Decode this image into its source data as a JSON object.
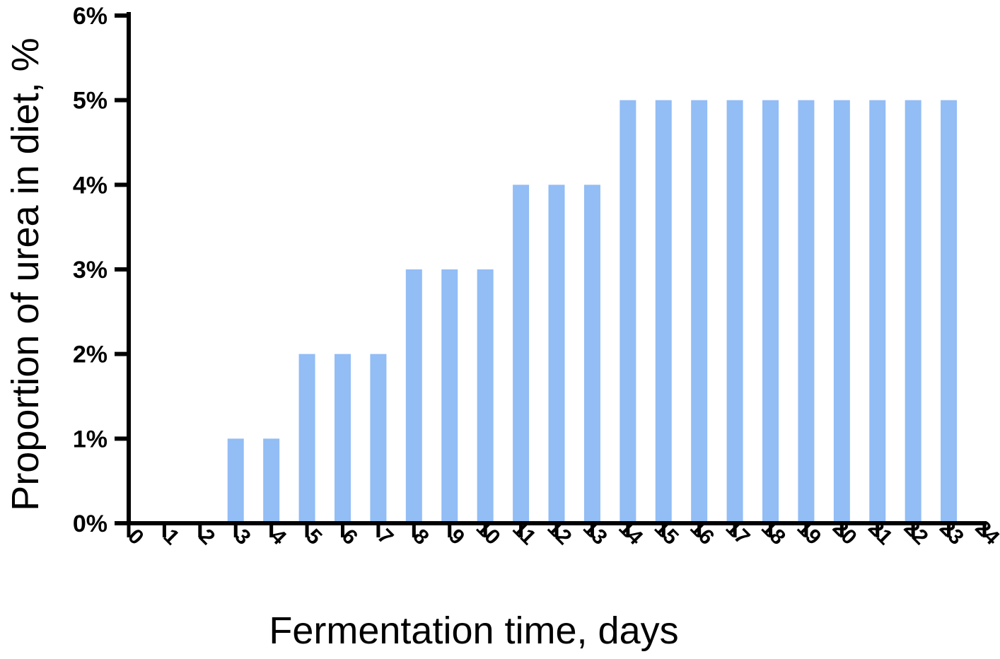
{
  "chart_data": {
    "type": "bar",
    "title": "",
    "xlabel": "Fermentation time, days",
    "ylabel": "Proportion of urea in diet, %",
    "x_ticks": [
      "0",
      "1",
      "2",
      "3",
      "4",
      "5",
      "6",
      "7",
      "8",
      "9",
      "10",
      "11",
      "12",
      "13",
      "14",
      "15",
      "16",
      "17",
      "18",
      "19",
      "20",
      "21",
      "22",
      "23",
      "24"
    ],
    "y_ticks": [
      "0%",
      "1%",
      "2%",
      "3%",
      "4%",
      "5%",
      "6%"
    ],
    "xlim": [
      0,
      24
    ],
    "ylim": [
      0,
      6
    ],
    "categories": [
      1,
      2,
      3,
      4,
      5,
      6,
      7,
      8,
      9,
      10,
      11,
      12,
      13,
      14,
      15,
      16,
      17,
      18,
      19,
      20,
      21,
      22,
      23
    ],
    "values": [
      0,
      0,
      1,
      1,
      2,
      2,
      2,
      3,
      3,
      3,
      4,
      4,
      4,
      5,
      5,
      5,
      5,
      5,
      5,
      5,
      5,
      5,
      5
    ],
    "bar_color": "#92bdf5",
    "grid": false,
    "legend": "none"
  }
}
